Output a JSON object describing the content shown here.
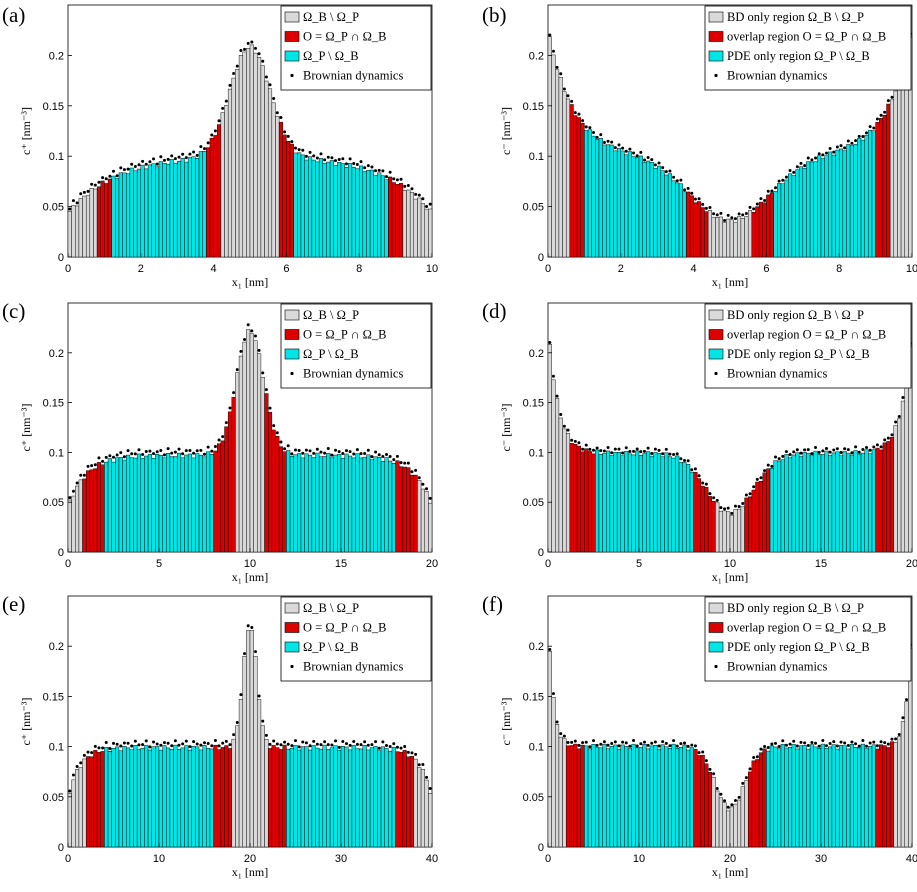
{
  "colors": {
    "bd_only": "#d9d9d9",
    "overlap": "#dd0000",
    "pde_only": "#00e5e5",
    "dots": "#000000",
    "stroke": "#000000"
  },
  "chart_data": [
    {
      "type": "bar",
      "panel": "(a)",
      "xlabel": "x₁ [nm]",
      "ylabel": "c⁺ [nm⁻³]",
      "xlim": [
        0,
        10
      ],
      "ylim": [
        0,
        0.25
      ],
      "xticks": [
        "0",
        "2",
        "4",
        "6",
        "8",
        "10"
      ],
      "yticks": [
        "0",
        "0.05",
        "0.1",
        "0.15",
        "0.2"
      ],
      "legend": {
        "placement": "top-right",
        "entries": [
          "Ω_B \\ Ω_P",
          "O = Ω_P ∩ Ω_B",
          "Ω_P \\ Ω_B",
          "Brownian dynamics"
        ]
      },
      "regions": {
        "overlap": [
          [
            0.8,
            1.2
          ],
          [
            3.8,
            4.2
          ],
          [
            5.8,
            6.2
          ],
          [
            8.8,
            9.2
          ]
        ],
        "pde": [
          [
            1.2,
            3.8
          ],
          [
            6.2,
            8.8
          ]
        ]
      },
      "bar_width": 0.1,
      "profile": {
        "edge": 0.043,
        "flat": 0.101,
        "decay": 1.3,
        "mid_peak": 0.11,
        "mid_width": 0.55,
        "mid_dip": 0
      },
      "dot_offset": 0.004
    },
    {
      "type": "bar",
      "panel": "(b)",
      "xlabel": "x₁ [nm]",
      "ylabel": "c⁻ [nm⁻³]",
      "xlim": [
        0,
        10
      ],
      "ylim": [
        0,
        0.25
      ],
      "xticks": [
        "0",
        "2",
        "4",
        "6",
        "8",
        "10"
      ],
      "yticks": [
        "0",
        "0.05",
        "0.1",
        "0.15",
        "0.2"
      ],
      "legend": {
        "placement": "top-right",
        "entries": [
          "BD only region Ω_B \\ Ω_P",
          "overlap region O = Ω_P ∩ Ω_B",
          "PDE only region Ω_P \\ Ω_B",
          "Brownian dynamics"
        ]
      },
      "regions": {
        "overlap": [
          [
            0.6,
            1.0
          ],
          [
            3.8,
            4.4
          ],
          [
            5.6,
            6.2
          ],
          [
            9.0,
            9.4
          ]
        ],
        "pde": [
          [
            1.0,
            3.8
          ],
          [
            6.2,
            9.0
          ]
        ]
      },
      "bar_width": 0.1,
      "profile": {
        "edge": 0.225,
        "flat": 0.1,
        "decay": 0.7,
        "mid_peak": 0,
        "mid_width": 1.1,
        "mid_dip": 0.064
      },
      "dot_offset": 0.003
    },
    {
      "type": "bar",
      "panel": "(c)",
      "xlabel": "x₁ [nm]",
      "ylabel": "c⁺ [nm⁻³]",
      "xlim": [
        0,
        20
      ],
      "ylim": [
        0,
        0.25
      ],
      "xticks": [
        "0",
        "5",
        "10",
        "15",
        "20"
      ],
      "yticks": [
        "0",
        "0.05",
        "0.1",
        "0.15",
        "0.2"
      ],
      "legend": {
        "placement": "top-right",
        "entries": [
          "Ω_B \\ Ω_P",
          "O = Ω_P ∩ Ω_B",
          "Ω_P \\ Ω_B",
          "Brownian dynamics"
        ]
      },
      "regions": {
        "overlap": [
          [
            0.8,
            2.0
          ],
          [
            8.0,
            9.2
          ],
          [
            10.8,
            12.0
          ],
          [
            18.0,
            19.2
          ]
        ],
        "pde": [
          [
            2.0,
            8.0
          ],
          [
            12.0,
            18.0
          ]
        ]
      },
      "bar_width": 0.2,
      "profile": {
        "edge": 0.045,
        "flat": 0.097,
        "decay": 1.0,
        "mid_peak": 0.125,
        "mid_width": 0.75,
        "mid_dip": 0
      },
      "dot_offset": 0.004
    },
    {
      "type": "bar",
      "panel": "(d)",
      "xlabel": "x₁ [nm]",
      "ylabel": "c⁻ [nm⁻³]",
      "xlim": [
        0,
        20
      ],
      "ylim": [
        0,
        0.25
      ],
      "xticks": [
        "0",
        "5",
        "10",
        "15",
        "20"
      ],
      "yticks": [
        "0",
        "0.05",
        "0.1",
        "0.15",
        "0.2"
      ],
      "legend": {
        "placement": "top-right",
        "entries": [
          "BD only region Ω_B \\ Ω_P",
          "overlap region O = Ω_P ∩ Ω_B",
          "PDE only region Ω_P \\ Ω_B",
          "Brownian dynamics"
        ]
      },
      "regions": {
        "overlap": [
          [
            1.2,
            2.6
          ],
          [
            8.0,
            9.2
          ],
          [
            10.8,
            12.2
          ],
          [
            18.0,
            19.0
          ]
        ],
        "pde": [
          [
            2.6,
            8.0
          ],
          [
            12.2,
            18.0
          ]
        ]
      },
      "bar_width": 0.2,
      "profile": {
        "edge": 0.23,
        "flat": 0.099,
        "decay": 0.55,
        "mid_peak": 0,
        "mid_width": 1.3,
        "mid_dip": 0.06
      },
      "dot_offset": 0.003
    },
    {
      "type": "bar",
      "panel": "(e)",
      "xlabel": "x₁ [nm]",
      "ylabel": "c⁺ [nm⁻³]",
      "xlim": [
        0,
        40
      ],
      "ylim": [
        0,
        0.25
      ],
      "xticks": [
        "0",
        "10",
        "20",
        "30",
        "40"
      ],
      "yticks": [
        "0",
        "0.05",
        "0.1",
        "0.15",
        "0.2"
      ],
      "legend": {
        "placement": "top-right",
        "entries": [
          "Ω_B \\ Ω_P",
          "O = Ω_P ∩ Ω_B",
          "Ω_P \\ Ω_B",
          "Brownian dynamics"
        ]
      },
      "regions": {
        "overlap": [
          [
            2.0,
            4.0
          ],
          [
            16.0,
            18.0
          ],
          [
            22.0,
            24.0
          ],
          [
            36.0,
            38.0
          ]
        ],
        "pde": [
          [
            4.0,
            16.0
          ],
          [
            24.0,
            36.0
          ]
        ]
      },
      "bar_width": 0.4,
      "profile": {
        "edge": 0.048,
        "flat": 0.099,
        "decay": 1.3,
        "mid_peak": 0.122,
        "mid_width": 0.75,
        "mid_dip": 0
      },
      "dot_offset": 0.004
    },
    {
      "type": "bar",
      "panel": "(f)",
      "xlabel": "x₁ [nm]",
      "ylabel": "c⁻ [nm⁻³]",
      "xlim": [
        0,
        40
      ],
      "ylim": [
        0,
        0.25
      ],
      "xticks": [
        "0",
        "10",
        "20",
        "30",
        "40"
      ],
      "yticks": [
        "0",
        "0.05",
        "0.1",
        "0.15",
        "0.2"
      ],
      "legend": {
        "placement": "top-right",
        "entries": [
          "BD only region Ω_B \\ Ω_P",
          "overlap region O = Ω_P ∩ Ω_B",
          "PDE only region Ω_P \\ Ω_B",
          "Brownian dynamics"
        ]
      },
      "regions": {
        "overlap": [
          [
            2.0,
            4.0
          ],
          [
            16.0,
            18.0
          ],
          [
            22.0,
            24.0
          ],
          [
            36.0,
            38.0
          ]
        ],
        "pde": [
          [
            4.0,
            16.0
          ],
          [
            24.0,
            36.0
          ]
        ]
      },
      "bar_width": 0.4,
      "profile": {
        "edge": 0.24,
        "flat": 0.1,
        "decay": 0.55,
        "mid_peak": 0,
        "mid_width": 1.6,
        "mid_dip": 0.062
      },
      "dot_offset": 0.003
    }
  ]
}
